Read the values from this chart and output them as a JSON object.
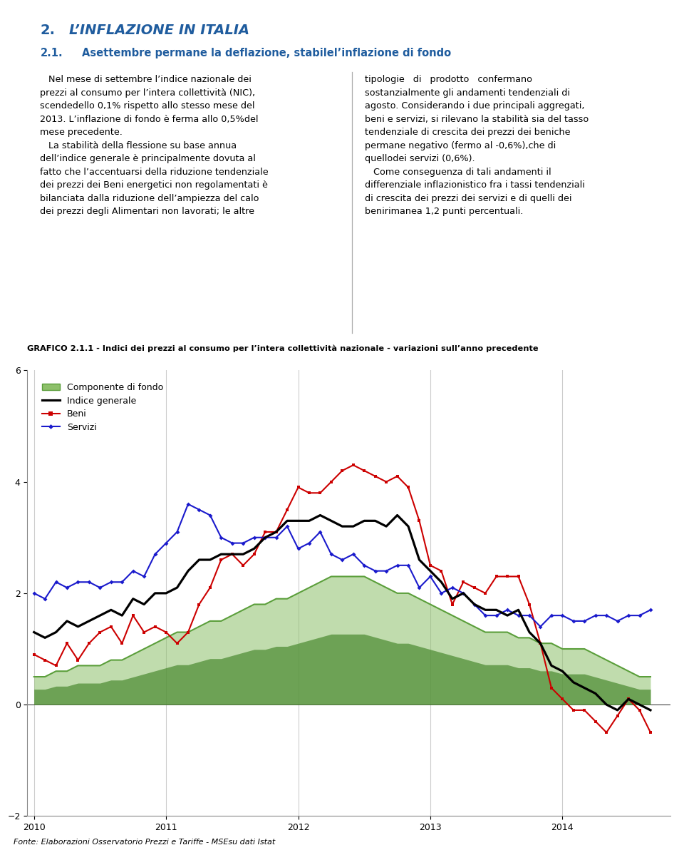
{
  "chart_title": "GRAFICO 2.1.1 - Indici dei prezzi al consumo per l’intera collettività nazionale - variazioni sull’anno precedente",
  "footer": "Fonte: Elaborazioni Osservatorio Prezzi e Tariffe - MSEsu dati Istat",
  "ylim": [
    -2.0,
    6.0
  ],
  "yticks": [
    -2.0,
    0.0,
    2.0,
    4.0,
    6.0
  ],
  "legend_labels": [
    "Componente di fondo",
    "Indice generale",
    "Beni",
    "Servizi"
  ],
  "componente_fondo": [
    0.5,
    0.5,
    0.6,
    0.6,
    0.7,
    0.7,
    0.7,
    0.8,
    0.8,
    0.9,
    1.0,
    1.1,
    1.2,
    1.3,
    1.3,
    1.4,
    1.5,
    1.5,
    1.6,
    1.7,
    1.8,
    1.8,
    1.9,
    1.9,
    2.0,
    2.1,
    2.2,
    2.3,
    2.3,
    2.3,
    2.3,
    2.2,
    2.1,
    2.0,
    2.0,
    1.9,
    1.8,
    1.7,
    1.6,
    1.5,
    1.4,
    1.3,
    1.3,
    1.3,
    1.2,
    1.2,
    1.1,
    1.1,
    1.0,
    1.0,
    1.0,
    0.9,
    0.8,
    0.7,
    0.6,
    0.5,
    0.5
  ],
  "indice_generale": [
    1.3,
    1.2,
    1.3,
    1.5,
    1.4,
    1.5,
    1.6,
    1.7,
    1.6,
    1.9,
    1.8,
    2.0,
    2.0,
    2.1,
    2.4,
    2.6,
    2.6,
    2.7,
    2.7,
    2.7,
    2.8,
    3.0,
    3.1,
    3.3,
    3.3,
    3.3,
    3.4,
    3.3,
    3.2,
    3.2,
    3.3,
    3.3,
    3.2,
    3.4,
    3.2,
    2.6,
    2.4,
    2.2,
    1.9,
    2.0,
    1.8,
    1.7,
    1.7,
    1.6,
    1.7,
    1.3,
    1.1,
    0.7,
    0.6,
    0.4,
    0.3,
    0.2,
    0.0,
    -0.1,
    0.1,
    0.0,
    -0.1
  ],
  "beni": [
    0.9,
    0.8,
    0.7,
    1.1,
    0.8,
    1.1,
    1.3,
    1.4,
    1.1,
    1.6,
    1.3,
    1.4,
    1.3,
    1.1,
    1.3,
    1.8,
    2.1,
    2.6,
    2.7,
    2.5,
    2.7,
    3.1,
    3.1,
    3.5,
    3.9,
    3.8,
    3.8,
    4.0,
    4.2,
    4.3,
    4.2,
    4.1,
    4.0,
    4.1,
    3.9,
    3.3,
    2.5,
    2.4,
    1.8,
    2.2,
    2.1,
    2.0,
    2.3,
    2.3,
    2.3,
    1.8,
    1.1,
    0.3,
    0.1,
    -0.1,
    -0.1,
    -0.3,
    -0.5,
    -0.2,
    0.1,
    -0.1,
    -0.5
  ],
  "servizi": [
    2.0,
    1.9,
    2.2,
    2.1,
    2.2,
    2.2,
    2.1,
    2.2,
    2.2,
    2.4,
    2.3,
    2.7,
    2.9,
    3.1,
    3.6,
    3.5,
    3.4,
    3.0,
    2.9,
    2.9,
    3.0,
    3.0,
    3.0,
    3.2,
    2.8,
    2.9,
    3.1,
    2.7,
    2.6,
    2.7,
    2.5,
    2.4,
    2.4,
    2.5,
    2.5,
    2.1,
    2.3,
    2.0,
    2.1,
    2.0,
    1.8,
    1.6,
    1.6,
    1.7,
    1.6,
    1.6,
    1.4,
    1.6,
    1.6,
    1.5,
    1.5,
    1.6,
    1.6,
    1.5,
    1.6,
    1.6,
    1.7
  ],
  "fondo_color": "#5a9e3a",
  "fondo_fill_top": "#8dc06a",
  "fondo_fill_bottom": "#4a8a30",
  "generale_color": "#000000",
  "beni_color": "#cc0000",
  "servizi_color": "#1a1acc",
  "grid_color": "#cccccc",
  "background_color": "#ffffff",
  "text_color_blue": "#1f5c9e"
}
